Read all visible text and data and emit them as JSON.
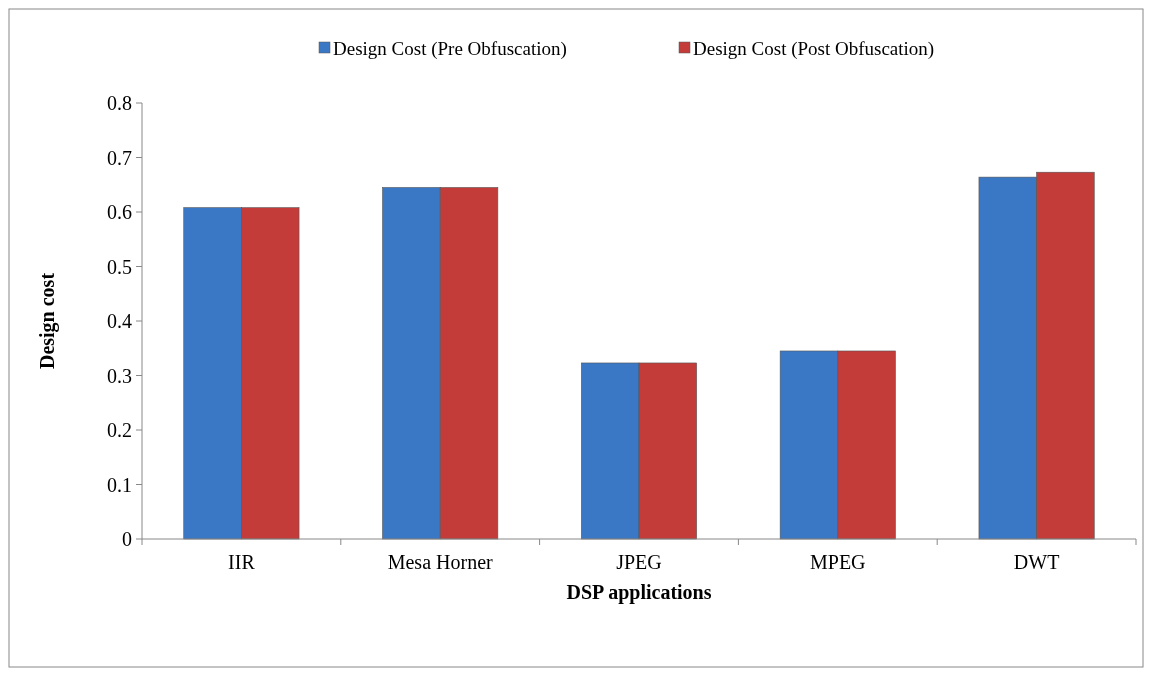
{
  "chart_data": {
    "type": "bar",
    "xlabel": "DSP applications",
    "ylabel": "Design cost",
    "categories": [
      "IIR",
      "Mesa Horner",
      "JPEG",
      "MPEG",
      "DWT"
    ],
    "series": [
      {
        "name": "Design Cost (Pre Obfuscation)",
        "color": "#3a78c6",
        "values": [
          0.608,
          0.645,
          0.323,
          0.345,
          0.664
        ]
      },
      {
        "name": "Design Cost (Post Obfuscation)",
        "color": "#c43c3a",
        "values": [
          0.608,
          0.645,
          0.323,
          0.345,
          0.673
        ]
      }
    ],
    "ylim": [
      0,
      0.8
    ],
    "yticks": [
      0,
      0.1,
      0.2,
      0.3,
      0.4,
      0.5,
      0.6,
      0.7,
      0.8
    ],
    "grid": false,
    "legend": "top"
  }
}
